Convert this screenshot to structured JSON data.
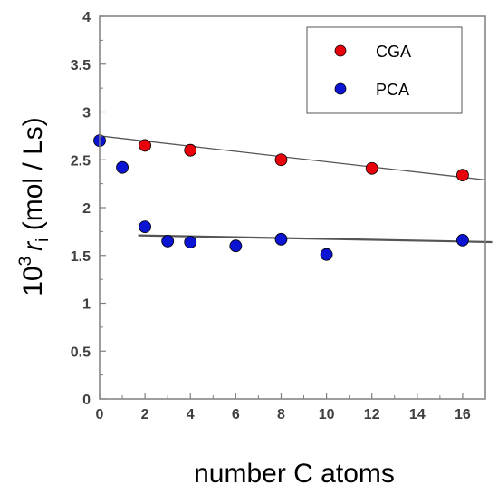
{
  "chart_data": {
    "type": "scatter",
    "xlabel": "number C atoms",
    "ylabel_prefix": "10",
    "ylabel_sup": "3",
    "ylabel_var": "r",
    "ylabel_sub": "i",
    "ylabel_rest": " (mol / Ls)",
    "xlim": [
      0,
      17
    ],
    "ylim": [
      0,
      4
    ],
    "xticks": [
      0,
      2,
      4,
      6,
      8,
      10,
      12,
      14,
      16
    ],
    "xtick_labels": [
      "0",
      "2",
      "4",
      "6",
      "8",
      "10",
      "12",
      "14",
      "16"
    ],
    "yticks": [
      0,
      0.5,
      1,
      1.5,
      2,
      2.5,
      3,
      3.5,
      4
    ],
    "ytick_labels": [
      "0",
      "0.5",
      "1",
      "1.5",
      "2",
      "2.5",
      "3",
      "3.5",
      "4"
    ],
    "grid": false,
    "legend_position": "top-right",
    "series": [
      {
        "name": "CGA",
        "color": "#e8000b",
        "points": [
          [
            2,
            2.65
          ],
          [
            4,
            2.6
          ],
          [
            8,
            2.5
          ],
          [
            12,
            2.41
          ],
          [
            16,
            2.34
          ]
        ]
      },
      {
        "name": "PCA",
        "color": "#0a14d2",
        "points": [
          [
            0,
            2.7
          ],
          [
            1,
            2.42
          ],
          [
            2,
            1.8
          ],
          [
            3,
            1.65
          ],
          [
            4,
            1.64
          ],
          [
            6,
            1.6
          ],
          [
            8,
            1.67
          ],
          [
            10,
            1.51
          ],
          [
            16,
            1.66
          ]
        ]
      }
    ],
    "trendlines": [
      {
        "series": "CGA",
        "from": [
          0,
          2.75
        ],
        "to": [
          17,
          2.29
        ],
        "color": "#555555"
      },
      {
        "series": "PCA",
        "from": [
          1.7,
          1.71
        ],
        "to": [
          17.3,
          1.64
        ],
        "color": "#555555"
      }
    ]
  }
}
